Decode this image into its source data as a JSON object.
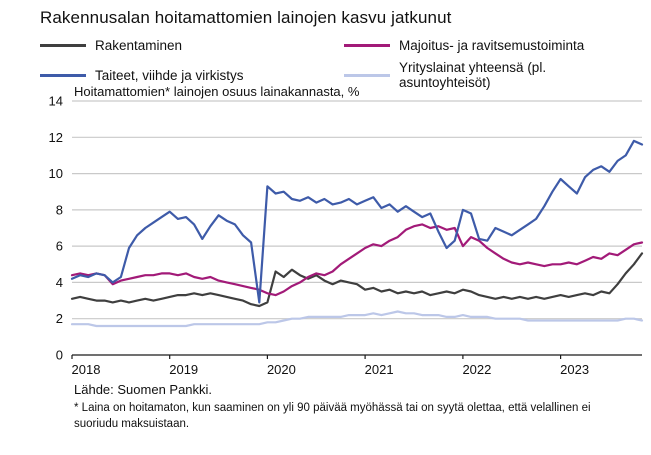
{
  "chart_data": {
    "type": "line",
    "title": "Rakennusalan hoitamattomien lainojen kasvu jatkunut",
    "axis_title": "Hoitamattomien* lainojen osuus lainakannasta, %",
    "x_unit": "month",
    "x_tick_labels": [
      "2018",
      "2019",
      "2020",
      "2021",
      "2022",
      "2023"
    ],
    "ylim": [
      0,
      14
    ],
    "y_ticks": [
      0,
      2,
      4,
      6,
      8,
      10,
      12,
      14
    ],
    "grid": true,
    "legend_position": "top",
    "series": [
      {
        "name": "Rakentaminen",
        "color": "#3f3f3f",
        "values": [
          3.1,
          3.2,
          3.1,
          3.0,
          3.0,
          2.9,
          3.0,
          2.9,
          3.0,
          3.1,
          3.0,
          3.1,
          3.2,
          3.3,
          3.3,
          3.4,
          3.3,
          3.4,
          3.3,
          3.2,
          3.1,
          3.0,
          2.8,
          2.7,
          2.9,
          4.6,
          4.3,
          4.7,
          4.4,
          4.2,
          4.4,
          4.1,
          3.9,
          4.1,
          4.0,
          3.9,
          3.6,
          3.7,
          3.5,
          3.6,
          3.4,
          3.5,
          3.4,
          3.5,
          3.3,
          3.4,
          3.5,
          3.4,
          3.6,
          3.5,
          3.3,
          3.2,
          3.1,
          3.2,
          3.1,
          3.2,
          3.1,
          3.2,
          3.1,
          3.2,
          3.3,
          3.2,
          3.3,
          3.4,
          3.3,
          3.5,
          3.4,
          3.9,
          4.5,
          5.0,
          5.6
        ]
      },
      {
        "name": "Majoitus- ja ravitsemustoiminta",
        "color": "#a21a78",
        "values": [
          4.4,
          4.5,
          4.4,
          4.5,
          4.4,
          3.9,
          4.1,
          4.2,
          4.3,
          4.4,
          4.4,
          4.5,
          4.5,
          4.4,
          4.5,
          4.3,
          4.2,
          4.3,
          4.1,
          4.0,
          3.9,
          3.8,
          3.7,
          3.6,
          3.4,
          3.3,
          3.5,
          3.8,
          4.0,
          4.3,
          4.5,
          4.4,
          4.6,
          5.0,
          5.3,
          5.6,
          5.9,
          6.1,
          6.0,
          6.3,
          6.5,
          6.9,
          7.1,
          7.2,
          7.0,
          7.1,
          6.9,
          7.0,
          6.0,
          6.5,
          6.3,
          5.9,
          5.6,
          5.3,
          5.1,
          5.0,
          5.1,
          5.0,
          4.9,
          5.0,
          5.0,
          5.1,
          5.0,
          5.2,
          5.4,
          5.3,
          5.6,
          5.5,
          5.8,
          6.1,
          6.2
        ]
      },
      {
        "name": "Taiteet, viihde ja virkistys",
        "color": "#3e5ba9",
        "values": [
          4.2,
          4.4,
          4.3,
          4.5,
          4.4,
          4.0,
          4.3,
          5.9,
          6.6,
          7.0,
          7.3,
          7.6,
          7.9,
          7.5,
          7.6,
          7.2,
          6.4,
          7.1,
          7.7,
          7.4,
          7.2,
          6.6,
          6.2,
          2.9,
          9.3,
          8.9,
          9.0,
          8.6,
          8.5,
          8.7,
          8.4,
          8.6,
          8.3,
          8.4,
          8.6,
          8.3,
          8.5,
          8.7,
          8.1,
          8.3,
          7.9,
          8.2,
          7.9,
          7.6,
          7.8,
          6.8,
          5.9,
          6.3,
          8.0,
          7.8,
          6.4,
          6.3,
          7.0,
          6.8,
          6.6,
          6.9,
          7.2,
          7.5,
          8.2,
          9.0,
          9.7,
          9.3,
          8.9,
          9.8,
          10.2,
          10.4,
          10.1,
          10.7,
          11.0,
          11.8,
          11.6
        ]
      },
      {
        "name": "Yrityslainat yhteensä (pl. asuntoyhteisöt)",
        "color": "#bcc7e8",
        "values": [
          1.7,
          1.7,
          1.7,
          1.6,
          1.6,
          1.6,
          1.6,
          1.6,
          1.6,
          1.6,
          1.6,
          1.6,
          1.6,
          1.6,
          1.6,
          1.7,
          1.7,
          1.7,
          1.7,
          1.7,
          1.7,
          1.7,
          1.7,
          1.7,
          1.8,
          1.8,
          1.9,
          2.0,
          2.0,
          2.1,
          2.1,
          2.1,
          2.1,
          2.1,
          2.2,
          2.2,
          2.2,
          2.3,
          2.2,
          2.3,
          2.4,
          2.3,
          2.3,
          2.2,
          2.2,
          2.2,
          2.1,
          2.1,
          2.2,
          2.1,
          2.1,
          2.1,
          2.0,
          2.0,
          2.0,
          2.0,
          1.9,
          1.9,
          1.9,
          1.9,
          1.9,
          1.9,
          1.9,
          1.9,
          1.9,
          1.9,
          1.9,
          1.9,
          2.0,
          2.0,
          1.9
        ]
      }
    ]
  },
  "footer": {
    "source": "Lähde: Suomen Pankki.",
    "footnote": "* Laina on hoitamaton, kun saaminen on yli 90 päivää myöhässä tai on syytä olettaa, että velallinen ei suoriudu maksuistaan."
  }
}
